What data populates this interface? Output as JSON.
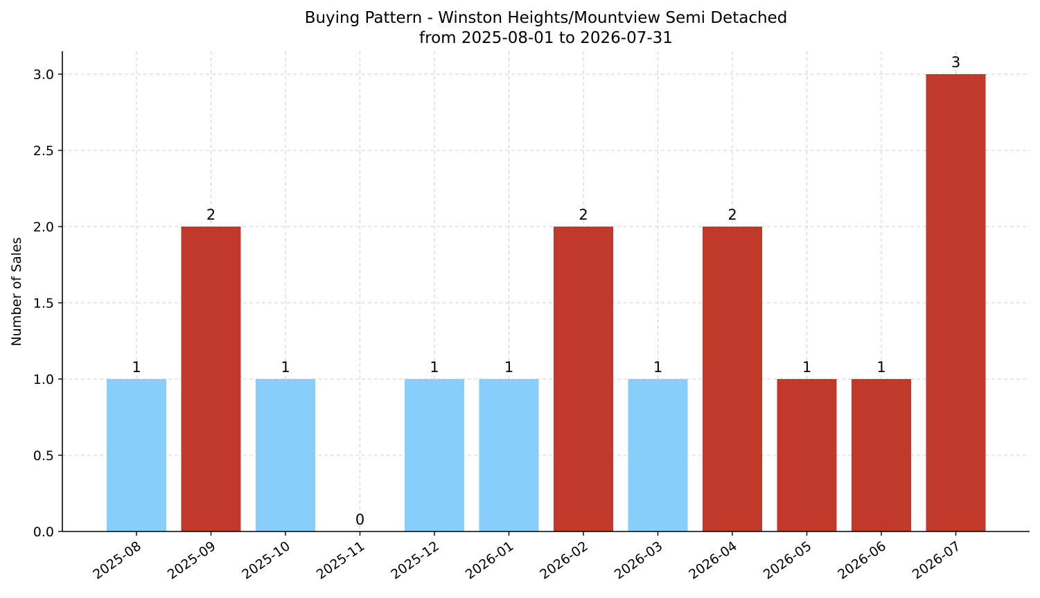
{
  "chart_data": {
    "type": "bar",
    "title": "Buying Pattern - Winston Heights/Mountview Semi Detached",
    "subtitle": "from 2025-08-01 to 2026-07-31",
    "xlabel": "",
    "ylabel": "Number of Sales",
    "categories": [
      "2025-08",
      "2025-09",
      "2025-10",
      "2025-11",
      "2025-12",
      "2026-01",
      "2026-02",
      "2026-03",
      "2026-04",
      "2026-05",
      "2026-06",
      "2026-07"
    ],
    "values": [
      1,
      2,
      1,
      0,
      1,
      1,
      2,
      1,
      2,
      1,
      1,
      3
    ],
    "data_labels": [
      "1",
      "2",
      "1",
      "0",
      "1",
      "1",
      "2",
      "1",
      "2",
      "1",
      "1",
      "3"
    ],
    "bar_colors": [
      "#87CEFA",
      "#C0392B",
      "#87CEFA",
      "#87CEFA",
      "#87CEFA",
      "#87CEFA",
      "#C0392B",
      "#87CEFA",
      "#C0392B",
      "#C0392B",
      "#C0392B",
      "#C0392B"
    ],
    "ylim": [
      0,
      3.15
    ],
    "yticks": [
      0,
      0.5,
      1,
      1.5,
      2,
      2.5,
      3
    ],
    "ytick_labels": [
      "0.0",
      "0.5",
      "1.0",
      "1.5",
      "2.0",
      "2.5",
      "3.0"
    ],
    "grid": true
  }
}
